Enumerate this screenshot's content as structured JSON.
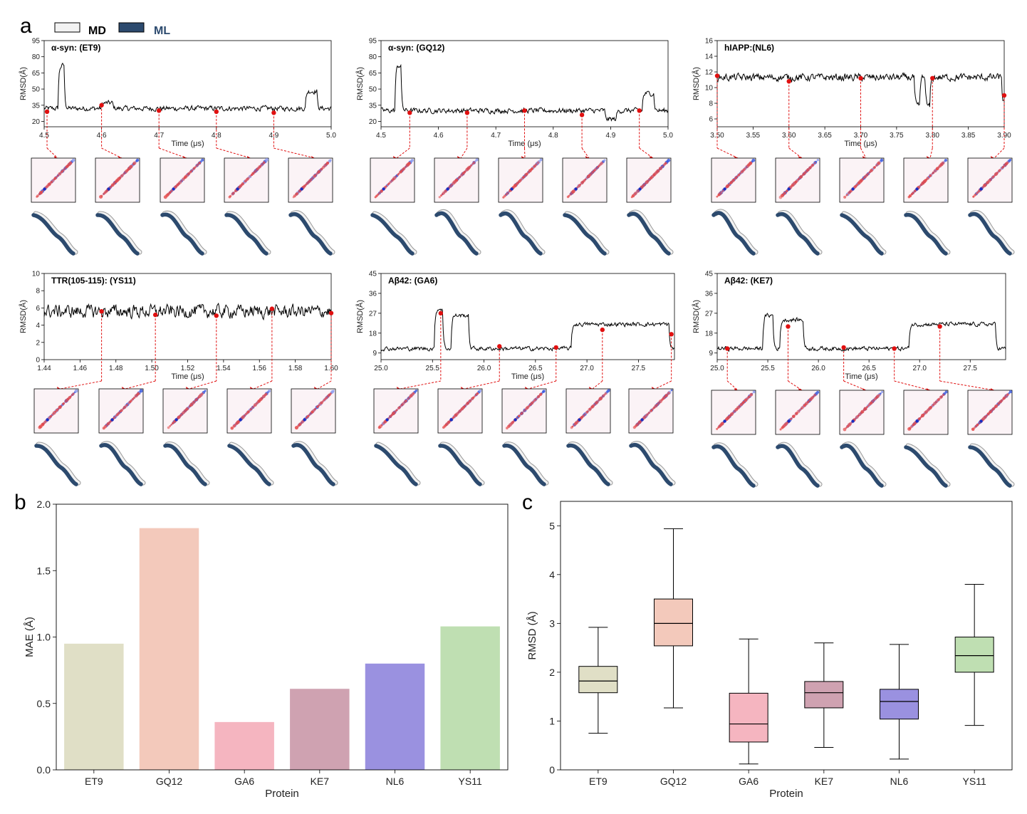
{
  "panel_labels": {
    "a": "a",
    "b": "b",
    "c": "c"
  },
  "legend": {
    "md": {
      "label": "MD",
      "color": "#f2f2f2",
      "text_color": "#000000"
    },
    "ml": {
      "label": "ML",
      "color": "#2c4a6e",
      "text_color": "#2c4a6e"
    }
  },
  "colors": {
    "marker": "#e01010",
    "connector": "#e01010",
    "trace": "#000000"
  },
  "chart_data": [
    {
      "type": "line",
      "title": "α-syn: (ET9)",
      "xlabel": "Time (μs)",
      "ylabel": "RMSD(Å)",
      "xlim": [
        4.5,
        5.0
      ],
      "ylim": [
        15,
        95
      ],
      "xticks": [
        4.5,
        4.6,
        4.7,
        4.8,
        4.9,
        5.0
      ],
      "xtick_labels": [
        "4.5",
        "4.6",
        "4.7",
        "4.8",
        "4.9",
        "5.0"
      ],
      "yticks": [
        20,
        35,
        50,
        65,
        80,
        95
      ],
      "ytick_labels": [
        "20",
        "35",
        "50",
        "65",
        "80",
        "95"
      ],
      "base": 32,
      "noise": 2.5,
      "features": [
        [
          4.525,
          4.535,
          72
        ],
        [
          4.6,
          4.62,
          37
        ],
        [
          4.955,
          4.975,
          48
        ]
      ],
      "markers": [
        [
          4.505,
          29
        ],
        [
          4.6,
          35
        ],
        [
          4.7,
          30
        ],
        [
          4.8,
          29
        ],
        [
          4.9,
          28
        ]
      ]
    },
    {
      "type": "line",
      "title": "α-syn: (GQ12)",
      "xlabel": "Time (μs)",
      "ylabel": "RMSD(Å)",
      "xlim": [
        4.5,
        5.0
      ],
      "ylim": [
        15,
        95
      ],
      "xticks": [
        4.5,
        4.6,
        4.7,
        4.8,
        4.9,
        5.0
      ],
      "xtick_labels": [
        "4.5",
        "4.6",
        "4.7",
        "4.8",
        "4.9",
        "5.0"
      ],
      "yticks": [
        20,
        35,
        50,
        65,
        80,
        95
      ],
      "ytick_labels": [
        "20",
        "35",
        "50",
        "65",
        "80",
        "95"
      ],
      "base": 30,
      "noise": 2.5,
      "features": [
        [
          4.525,
          4.535,
          72
        ],
        [
          4.955,
          4.975,
          46
        ],
        [
          4.89,
          4.91,
          22
        ]
      ],
      "markers": [
        [
          4.55,
          28
        ],
        [
          4.65,
          28
        ],
        [
          4.75,
          30
        ],
        [
          4.85,
          26
        ],
        [
          4.95,
          30
        ]
      ]
    },
    {
      "type": "line",
      "title": "hIAPP:(NL6)",
      "xlabel": "Time (μs)",
      "ylabel": "RMSD(Å)",
      "xlim": [
        3.5,
        3.9
      ],
      "ylim": [
        5,
        16
      ],
      "xticks": [
        3.5,
        3.55,
        3.6,
        3.65,
        3.7,
        3.75,
        3.8,
        3.85,
        3.9
      ],
      "xtick_labels": [
        "3.50",
        "3.55",
        "3.60",
        "3.65",
        "3.70",
        "3.75",
        "3.80",
        "3.85",
        "3.90"
      ],
      "yticks": [
        6,
        8,
        10,
        12,
        14,
        16
      ],
      "ytick_labels": [
        "6",
        "8",
        "10",
        "12",
        "14",
        "16"
      ],
      "base": 11.3,
      "noise": 0.5,
      "features": [
        [
          3.775,
          3.782,
          7.5
        ],
        [
          3.79,
          3.797,
          7.5
        ],
        [
          3.897,
          3.9,
          8
        ]
      ],
      "markers": [
        [
          3.5,
          11.5
        ],
        [
          3.6,
          10.8
        ],
        [
          3.7,
          11.2
        ],
        [
          3.8,
          11.2
        ],
        [
          3.9,
          9
        ]
      ]
    },
    {
      "type": "line",
      "title": "TTR(105-115): (YS11)",
      "xlabel": "Time (μs)",
      "ylabel": "RMSD(Å)",
      "xlim": [
        1.44,
        1.6
      ],
      "ylim": [
        0,
        10
      ],
      "xticks": [
        1.44,
        1.46,
        1.48,
        1.5,
        1.52,
        1.54,
        1.56,
        1.58,
        1.6
      ],
      "xtick_labels": [
        "1.44",
        "1.46",
        "1.48",
        "1.50",
        "1.52",
        "1.54",
        "1.56",
        "1.58",
        "1.60"
      ],
      "yticks": [
        0,
        2,
        4,
        6,
        8,
        10
      ],
      "ytick_labels": [
        "0",
        "2",
        "4",
        "6",
        "8",
        "10"
      ],
      "base": 5.6,
      "noise": 0.8,
      "features": [],
      "markers": [
        [
          1.472,
          5.6
        ],
        [
          1.502,
          5.2
        ],
        [
          1.536,
          5.1
        ],
        [
          1.567,
          5.9
        ],
        [
          1.6,
          5.4
        ]
      ]
    },
    {
      "type": "line",
      "title": "Aβ42:  (GA6)",
      "xlabel": "Time (μs)",
      "ylabel": "RMSD(Å)",
      "xlim": [
        25.0,
        27.85
      ],
      "ylim": [
        6,
        45
      ],
      "xticks": [
        25.0,
        25.5,
        26.0,
        26.5,
        27.0,
        27.5
      ],
      "xtick_labels": [
        "25.0",
        "25.5",
        "26.0",
        "26.5",
        "27.0",
        "27.5"
      ],
      "yticks": [
        9,
        18,
        27,
        36,
        45
      ],
      "ytick_labels": [
        "9",
        "18",
        "27",
        "36",
        "45"
      ],
      "base": 11,
      "noise": 1.0,
      "features": [
        [
          25.52,
          25.6,
          29
        ],
        [
          25.68,
          25.85,
          26
        ],
        [
          26.85,
          27.8,
          22
        ]
      ],
      "markers": [
        [
          25.58,
          27
        ],
        [
          26.15,
          12
        ],
        [
          26.7,
          11.5
        ],
        [
          27.15,
          19.5
        ],
        [
          27.82,
          17.5
        ]
      ]
    },
    {
      "type": "line",
      "title": "Aβ42: (KE7)",
      "xlabel": "Time (μs)",
      "ylabel": "RMSD(Å)",
      "xlim": [
        25.0,
        27.85
      ],
      "ylim": [
        6,
        45
      ],
      "xticks": [
        25.0,
        25.5,
        26.0,
        26.5,
        27.0,
        27.5
      ],
      "xtick_labels": [
        "25.0",
        "25.5",
        "26.0",
        "26.5",
        "27.0",
        "27.5"
      ],
      "yticks": [
        9,
        18,
        27,
        36,
        45
      ],
      "ytick_labels": [
        "9",
        "18",
        "27",
        "36",
        "45"
      ],
      "base": 11,
      "noise": 1.0,
      "features": [
        [
          25.45,
          25.55,
          26
        ],
        [
          25.62,
          25.85,
          24
        ],
        [
          26.9,
          27.75,
          22
        ]
      ],
      "markers": [
        [
          25.1,
          11
        ],
        [
          25.7,
          21
        ],
        [
          26.25,
          11.5
        ],
        [
          26.75,
          11
        ],
        [
          27.2,
          21
        ]
      ]
    },
    {
      "type": "bar",
      "xlabel": "Protein",
      "ylabel": "MAE (Å)",
      "ylim": [
        0.0,
        2.0
      ],
      "yticks": [
        0.0,
        0.5,
        1.0,
        1.5,
        2.0
      ],
      "ytick_labels": [
        "0.0",
        "0.5",
        "1.0",
        "1.5",
        "2.0"
      ],
      "categories": [
        "ET9",
        "GQ12",
        "GA6",
        "KE7",
        "NL6",
        "YS11"
      ],
      "values": [
        0.95,
        1.82,
        0.36,
        0.61,
        0.8,
        1.08
      ],
      "colors": [
        "#e0dfc6",
        "#f3c9bb",
        "#f5b5c0",
        "#cfa2b1",
        "#9a91e0",
        "#bfdfb2"
      ]
    },
    {
      "type": "box",
      "xlabel": "Protein",
      "ylabel": "RMSD (Å)",
      "ylim": [
        0,
        5.5
      ],
      "yticks": [
        0,
        1,
        2,
        3,
        4,
        5
      ],
      "ytick_labels": [
        "0",
        "1",
        "2",
        "3",
        "4",
        "5"
      ],
      "categories": [
        "ET9",
        "GQ12",
        "GA6",
        "KE7",
        "NL6",
        "YS11"
      ],
      "boxes": [
        {
          "min": 0.75,
          "q1": 1.58,
          "median": 1.82,
          "q3": 2.12,
          "max": 2.92
        },
        {
          "min": 1.27,
          "q1": 2.54,
          "median": 3.0,
          "q3": 3.5,
          "max": 4.94
        },
        {
          "min": 0.12,
          "q1": 0.57,
          "median": 0.94,
          "q3": 1.57,
          "max": 2.68
        },
        {
          "min": 0.46,
          "q1": 1.27,
          "median": 1.58,
          "q3": 1.81,
          "max": 2.6
        },
        {
          "min": 0.22,
          "q1": 1.04,
          "median": 1.4,
          "q3": 1.65,
          "max": 2.57
        },
        {
          "min": 0.91,
          "q1": 2.0,
          "median": 2.34,
          "q3": 2.72,
          "max": 3.8
        }
      ],
      "colors": [
        "#e0dfc6",
        "#f3c9bb",
        "#f5b5c0",
        "#cfa2b1",
        "#9a91e0",
        "#bfdfb2"
      ]
    }
  ]
}
